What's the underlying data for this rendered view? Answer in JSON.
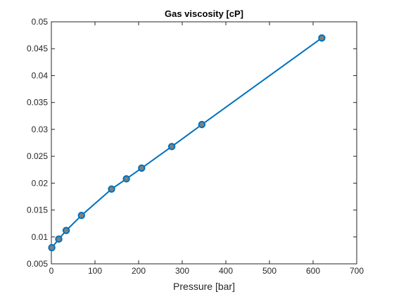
{
  "chart_data": {
    "type": "line",
    "title": "Gas viscosity [cP]",
    "xlabel": "Pressure [bar]",
    "ylabel": "",
    "xlim": [
      0,
      700
    ],
    "ylim": [
      0.005,
      0.05
    ],
    "xticks": [
      0,
      100,
      200,
      300,
      400,
      500,
      600,
      700
    ],
    "yticks": [
      0.005,
      0.01,
      0.015,
      0.02,
      0.025,
      0.03,
      0.035,
      0.04,
      0.045,
      0.05
    ],
    "xtick_labels": [
      "0",
      "100",
      "200",
      "300",
      "400",
      "500",
      "600",
      "700"
    ],
    "ytick_labels": [
      "0.005",
      "0.01",
      "0.015",
      "0.02",
      "0.025",
      "0.03",
      "0.035",
      "0.04",
      "0.045",
      "0.05"
    ],
    "grid": false,
    "box": true,
    "series": [
      {
        "line_color": "#0072BD",
        "marker": "circle",
        "marker_face_color": "#7F7F7F",
        "marker_edge_color": "#0072BD",
        "x": [
          1,
          17,
          34,
          69,
          138,
          172,
          207,
          276,
          345,
          620
        ],
        "y": [
          0.008,
          0.0096,
          0.0112,
          0.014,
          0.0189,
          0.0208,
          0.0228,
          0.0268,
          0.0309,
          0.047
        ]
      }
    ]
  }
}
